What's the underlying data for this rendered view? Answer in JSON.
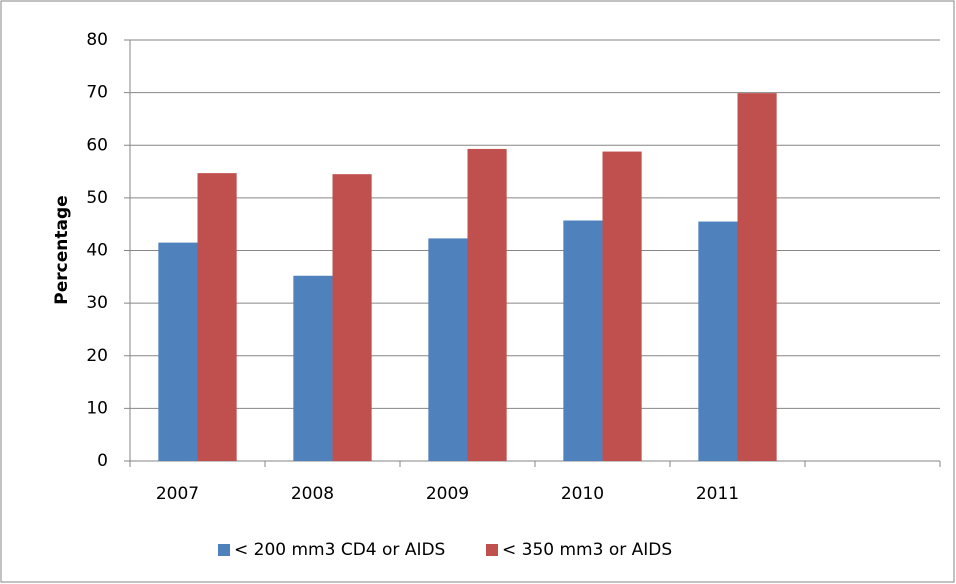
{
  "chart_data": {
    "type": "bar",
    "y_label": "Percentage",
    "categories": [
      "2007",
      "2008",
      "2009",
      "2010",
      "2011",
      null
    ],
    "series": [
      {
        "name": "< 200 mm3 CD4 or AIDS",
        "color": "#4f81bd",
        "values": [
          41.5,
          35.2,
          42.3,
          45.7,
          45.5,
          null
        ]
      },
      {
        "name": "< 350 mm3 or AIDS",
        "color": "#c0504d",
        "values": [
          54.7,
          54.5,
          59.3,
          58.8,
          69.9,
          null
        ]
      }
    ],
    "ylim": [
      0,
      80
    ],
    "yticks": [
      0,
      10,
      20,
      30,
      40,
      50,
      60,
      70,
      80
    ],
    "grid": true,
    "legend": "bottom"
  }
}
